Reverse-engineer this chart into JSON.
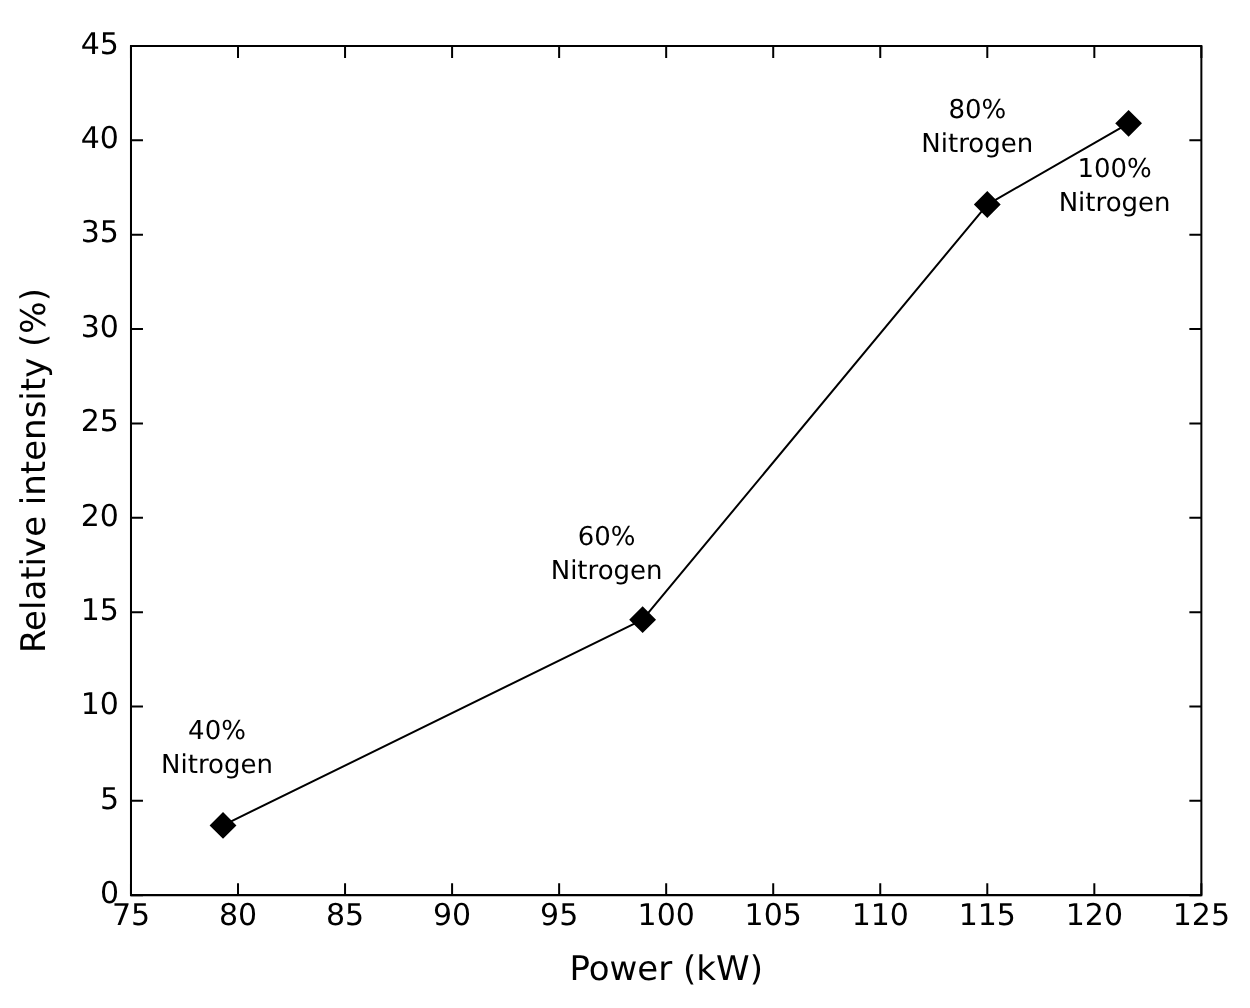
{
  "chart_data": {
    "type": "line",
    "xlabel": "Power (kW)",
    "ylabel": "Relative intensity (%)",
    "x": [
      79.3,
      98.9,
      115,
      121.6
    ],
    "series": [
      {
        "color": "#000000",
        "values": [
          3.7,
          14.6,
          36.6,
          40.9
        ]
      }
    ],
    "xlim": [
      75,
      125
    ],
    "xticks": [
      75,
      80,
      85,
      90,
      95,
      100,
      105,
      110,
      115,
      120,
      125
    ],
    "ylim": [
      0,
      45
    ],
    "yticks": [
      0,
      5,
      10,
      15,
      20,
      25,
      30,
      35,
      40,
      45
    ],
    "marker": "diamond",
    "line_style": "solid",
    "legend": false,
    "annotations": [
      {
        "text": "40%\nNitrogen",
        "x": 79.3,
        "y": 3.7
      },
      {
        "text": "60%\nNitrogen",
        "x": 98.9,
        "y": 14.6
      },
      {
        "text": "80%\nNitrogen",
        "x": 115,
        "y": 36.6
      },
      {
        "text": "100%\nNitrogen",
        "x": 121.6,
        "y": 40.9
      }
    ]
  }
}
